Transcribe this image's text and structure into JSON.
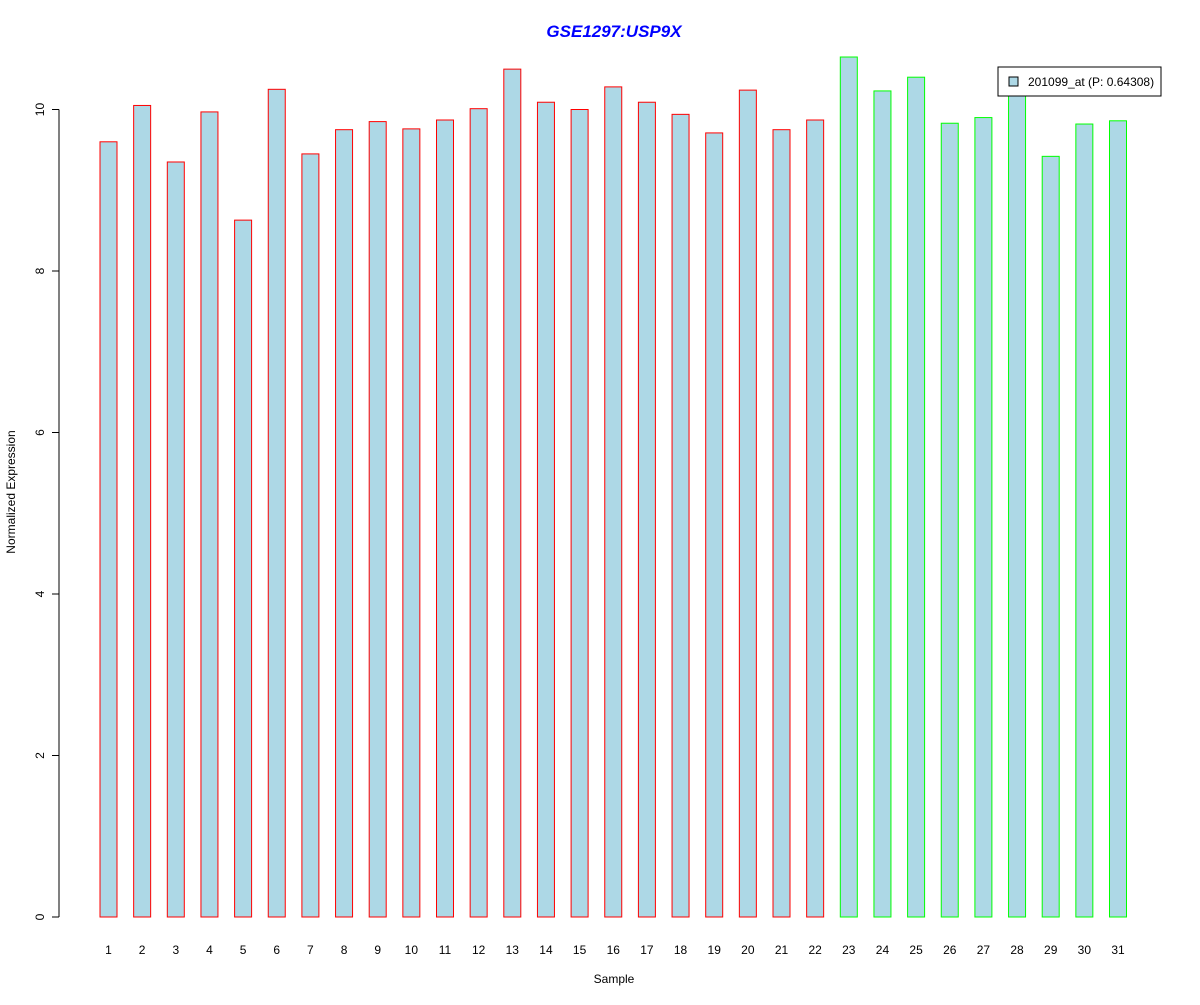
{
  "chart_data": {
    "type": "bar",
    "title": "GSE1297:USP9X",
    "xlabel": "Sample",
    "ylabel": "Normalized Expression",
    "categories": [
      "1",
      "2",
      "3",
      "4",
      "5",
      "6",
      "7",
      "8",
      "9",
      "10",
      "11",
      "12",
      "13",
      "14",
      "15",
      "16",
      "17",
      "18",
      "19",
      "20",
      "21",
      "22",
      "23",
      "24",
      "25",
      "26",
      "27",
      "28",
      "29",
      "30",
      "31"
    ],
    "series": [
      {
        "name": "201099_at (P: 0.64308)",
        "values": [
          9.6,
          10.05,
          9.35,
          9.97,
          8.63,
          10.25,
          9.45,
          9.75,
          9.85,
          9.76,
          9.87,
          10.01,
          10.5,
          10.09,
          10.0,
          10.28,
          10.09,
          9.94,
          9.71,
          10.24,
          9.75,
          9.87,
          10.65,
          10.23,
          10.4,
          9.83,
          9.9,
          10.2,
          9.42,
          9.82,
          9.86
        ]
      }
    ],
    "group_count_first": 22,
    "ylim": [
      0,
      10.65
    ],
    "yticks": [
      0,
      2,
      4,
      6,
      8,
      10
    ],
    "grid": false,
    "legend_position": "top-right",
    "colors": {
      "bar_fill": "#add8e6",
      "border_group1": "#ff0000",
      "border_group2": "#00ff00",
      "title": "#0000ff",
      "axis": "#000000"
    }
  }
}
